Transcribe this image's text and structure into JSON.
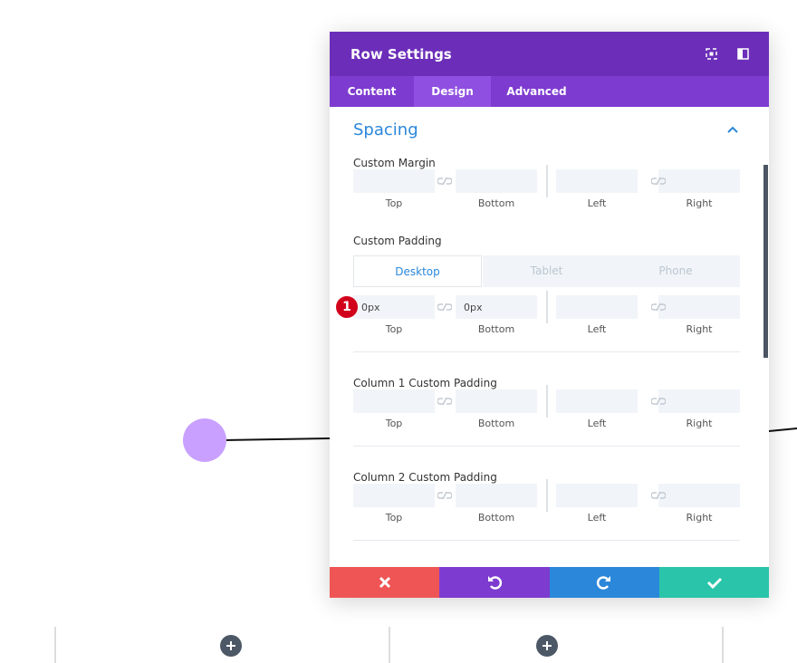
{
  "header": {
    "title": "Row Settings"
  },
  "tabs": [
    {
      "label": "Content"
    },
    {
      "label": "Design",
      "active": true
    },
    {
      "label": "Advanced"
    }
  ],
  "section": {
    "title": "Spacing"
  },
  "groups": [
    {
      "label": "Custom Margin",
      "fields": [
        "Top",
        "Bottom",
        "Left",
        "Right"
      ]
    },
    {
      "label": "Custom Padding",
      "devices": [
        "Desktop",
        "Tablet",
        "Phone"
      ],
      "values": [
        "0px",
        "0px"
      ],
      "badge": "1",
      "fields": [
        "Top",
        "Bottom",
        "Left",
        "Right"
      ]
    },
    {
      "label": "Column 1 Custom Padding",
      "fields": [
        "Top",
        "Bottom",
        "Left",
        "Right"
      ]
    },
    {
      "label": "Column 2 Custom Padding",
      "fields": [
        "Top",
        "Bottom",
        "Left",
        "Right"
      ]
    }
  ]
}
